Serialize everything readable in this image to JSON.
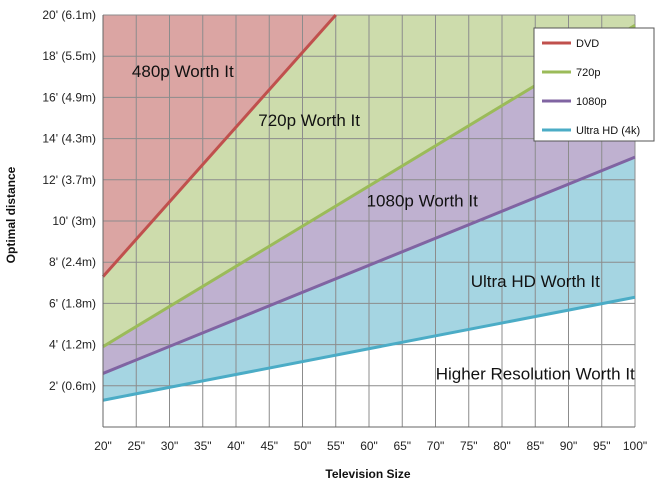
{
  "chart_data": {
    "type": "area",
    "xlabel": "Television Size",
    "ylabel": "Optimal distance",
    "x": [
      20,
      25,
      30,
      35,
      40,
      45,
      50,
      55,
      60,
      65,
      70,
      75,
      80,
      85,
      90,
      95,
      100
    ],
    "x_tick_labels": [
      "20\"",
      "25\"",
      "30\"",
      "35\"",
      "40\"",
      "45\"",
      "50\"",
      "55\"",
      "60\"",
      "65\"",
      "70\"",
      "75\"",
      "80\"",
      "85\"",
      "90\"",
      "95\"",
      "100\""
    ],
    "xlim": [
      20,
      100
    ],
    "ylim": [
      0,
      20
    ],
    "y_ticks": [
      2,
      4,
      6,
      8,
      10,
      12,
      14,
      16,
      18,
      20
    ],
    "y_tick_labels": [
      "2' (0.6m)",
      "4' (1.2m)",
      "6' (1.8m)",
      "8' (2.4m)",
      "10' (3m)",
      "12' (3.7m)",
      "14' (4.3m)",
      "16' (4.9m)",
      "18' (5.5m)",
      "20' (6.1m)"
    ],
    "grid": true,
    "legend_position": "top-right",
    "series": [
      {
        "name": "DVD",
        "color": "#c0504d",
        "fill": "#dba5a3",
        "x": [
          20,
          55
        ],
        "values": [
          7.3,
          20
        ]
      },
      {
        "name": "720p",
        "color": "#9bbb59",
        "fill": "#cddcac",
        "x": [
          20,
          100
        ],
        "values": [
          3.9,
          19.5
        ]
      },
      {
        "name": "1080p",
        "color": "#8064a2",
        "fill": "#bfb1d0",
        "x": [
          20,
          100
        ],
        "values": [
          2.6,
          13.1
        ]
      },
      {
        "name": "Ultra HD (4k)",
        "color": "#4bacc6",
        "fill": "#a5d5e2",
        "x": [
          20,
          100
        ],
        "values": [
          1.3,
          6.3
        ]
      }
    ],
    "annotations": [
      {
        "text": "480p Worth It",
        "x": 32,
        "y": 17.0
      },
      {
        "text": "720p Worth It",
        "x": 51,
        "y": 14.6
      },
      {
        "text": "1080p Worth It",
        "x": 68,
        "y": 10.7
      },
      {
        "text": "Ultra HD Worth It",
        "x": 85,
        "y": 6.8
      },
      {
        "text": "Higher Resolution Worth It",
        "x": 85,
        "y": 2.3
      }
    ]
  }
}
